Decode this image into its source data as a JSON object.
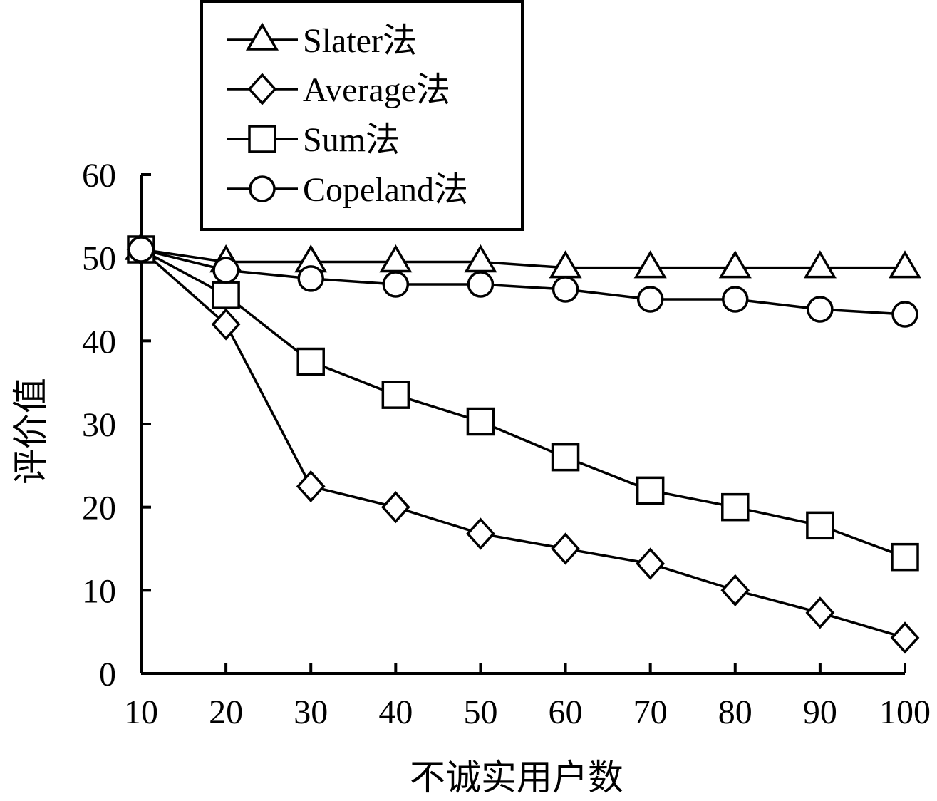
{
  "chart_data": {
    "type": "line",
    "x": [
      10,
      20,
      30,
      40,
      50,
      60,
      70,
      80,
      90,
      100
    ],
    "xlabel": "不诚实用户数",
    "ylabel": "评价值",
    "xlim": [
      10,
      100
    ],
    "ylim": [
      0,
      60
    ],
    "x_ticks": [
      "10",
      "20",
      "30",
      "40",
      "50",
      "60",
      "70",
      "80",
      "90",
      "100"
    ],
    "y_ticks": [
      "0",
      "10",
      "20",
      "30",
      "40",
      "50",
      "60"
    ],
    "grid": false,
    "legend_position": "top-left",
    "series": [
      {
        "name": "Slater法",
        "marker": "triangle",
        "values": [
          51,
          49.5,
          49.5,
          49.5,
          49.5,
          48.8,
          48.8,
          48.8,
          48.8,
          48.8
        ]
      },
      {
        "name": "Average法",
        "marker": "diamond",
        "values": [
          51,
          42,
          22.5,
          20,
          16.8,
          15,
          13.2,
          10,
          7.3,
          4.3
        ]
      },
      {
        "name": "Sum法",
        "marker": "square",
        "values": [
          51,
          45.5,
          37.5,
          33.5,
          30.3,
          26,
          22,
          20,
          17.8,
          14
        ]
      },
      {
        "name": "Copeland法",
        "marker": "circle",
        "values": [
          51,
          48.5,
          47.5,
          46.8,
          46.8,
          46.2,
          45,
          45,
          43.8,
          43.2
        ]
      }
    ]
  }
}
